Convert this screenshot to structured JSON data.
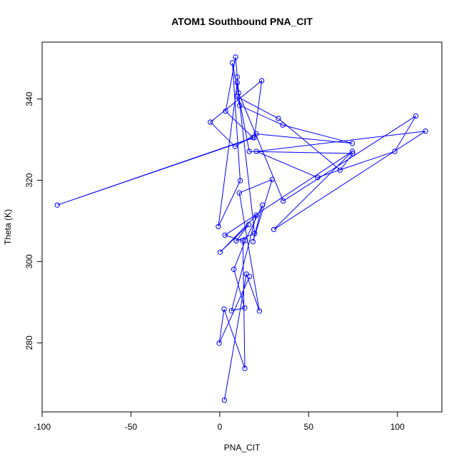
{
  "chart_data": {
    "type": "line",
    "title": "ATOM1 Southbound PNA_CIT",
    "xlabel": "PNA_CIT",
    "ylabel": "Theta (K)",
    "xlim": [
      -100,
      125
    ],
    "ylim": [
      263,
      354
    ],
    "xticks": [
      -100,
      -50,
      0,
      50,
      100
    ],
    "yticks": [
      280,
      300,
      320,
      340
    ],
    "grid": false,
    "legend": "none",
    "markers": "open-circle",
    "line_color": "#0000ff",
    "marker_color": "#0000ff",
    "series": [
      {
        "points": [
          [
            2.6,
            265.9
          ],
          [
            15.0,
            296.9
          ],
          [
            22.3,
            287.8
          ],
          [
            11.0,
            316.9
          ],
          [
            29.5,
            320.2
          ],
          [
            18.7,
            304.9
          ],
          [
            24.0,
            313.9
          ],
          [
            14.4,
            305.2
          ],
          [
            7.9,
            298.1
          ],
          [
            14.0,
            288.6
          ],
          [
            6.6,
            287.9
          ],
          [
            20.5,
            311.4
          ],
          [
            0.2,
            302.3
          ],
          [
            16.3,
            309.1
          ],
          [
            9.3,
            305.1
          ],
          [
            19.6,
            306.9
          ],
          [
            9.8,
            344.0
          ],
          [
            -0.8,
            308.6
          ],
          [
            11.5,
            319.9
          ],
          [
            7.1,
            348.9
          ],
          [
            16.6,
            327.1
          ],
          [
            74.8,
            326.6
          ],
          [
            67.8,
            322.5
          ],
          [
            33.0,
            335.2
          ],
          [
            9.6,
            340.6
          ],
          [
            11.2,
            338.4
          ],
          [
            35.4,
            333.6
          ],
          [
            74.6,
            329.1
          ],
          [
            20.5,
            331.4
          ],
          [
            8.6,
            328.3
          ],
          [
            -5.3,
            334.3
          ],
          [
            23.6,
            344.5
          ],
          [
            19.5,
            330.5
          ],
          [
            -91.5,
            313.9
          ],
          [
            18.7,
            330.5
          ],
          [
            3.3,
            337.0
          ],
          [
            8.9,
            350.3
          ],
          [
            9.8,
            345.4
          ],
          [
            10.6,
            341.5
          ],
          [
            35.7,
            314.9
          ],
          [
            110.3,
            335.8
          ],
          [
            98.5,
            327.1
          ],
          [
            55.0,
            320.7
          ],
          [
            20.6,
            327.1
          ],
          [
            115.8,
            332.1
          ],
          [
            30.4,
            307.9
          ],
          [
            74.6,
            327.1
          ],
          [
            2.9,
            306.5
          ],
          [
            13.0,
            305.1
          ],
          [
            14.1,
            273.7
          ],
          [
            2.4,
            288.3
          ],
          [
            -0.3,
            279.9
          ],
          [
            16.8,
            296.3
          ]
        ]
      }
    ]
  }
}
